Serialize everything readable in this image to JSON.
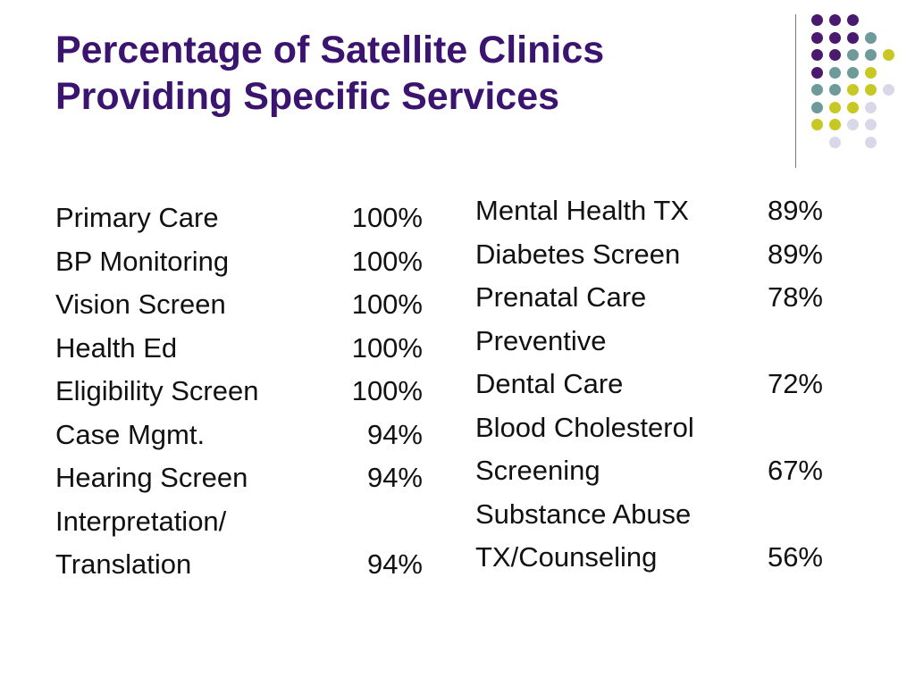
{
  "slide": {
    "title_line1": "Percentage of Satellite Clinics",
    "title_line2": "Providing Specific Services"
  },
  "colors": {
    "title": "#3b1470",
    "dot_purple": "#4a1a6e",
    "dot_teal": "#6f9a9a",
    "dot_yellow": "#c8c824",
    "dot_lavender": "#d8d8e8",
    "divider": "#7a7a7a"
  },
  "left_column": [
    {
      "label": "Primary Care",
      "value": "100%"
    },
    {
      "label": "BP Monitoring",
      "value": "100%"
    },
    {
      "label": "Vision Screen",
      "value": "100%"
    },
    {
      "label": "Health Ed",
      "value": "100%"
    },
    {
      "label": "Eligibility Screen",
      "value": "100%"
    },
    {
      "label": "Case Mgmt.",
      "value": "94%"
    },
    {
      "label": "Hearing Screen",
      "value": "94%"
    },
    {
      "label": "Interpretation/",
      "value": ""
    },
    {
      "label": "Translation",
      "value": "94%"
    }
  ],
  "right_column": [
    {
      "label": "Mental Health TX",
      "value": "89%"
    },
    {
      "label": "Diabetes Screen",
      "value": "89%"
    },
    {
      "label": "Prenatal Care",
      "value": "78%"
    },
    {
      "label": "Preventive",
      "value": ""
    },
    {
      "label": "Dental Care",
      "value": "72%"
    },
    {
      "label": "Blood Cholesterol",
      "value": ""
    },
    {
      "label": "Screening",
      "value": "67%"
    },
    {
      "label": "Substance Abuse",
      "value": ""
    },
    {
      "label": "TX/Counseling",
      "value": "56%"
    }
  ]
}
